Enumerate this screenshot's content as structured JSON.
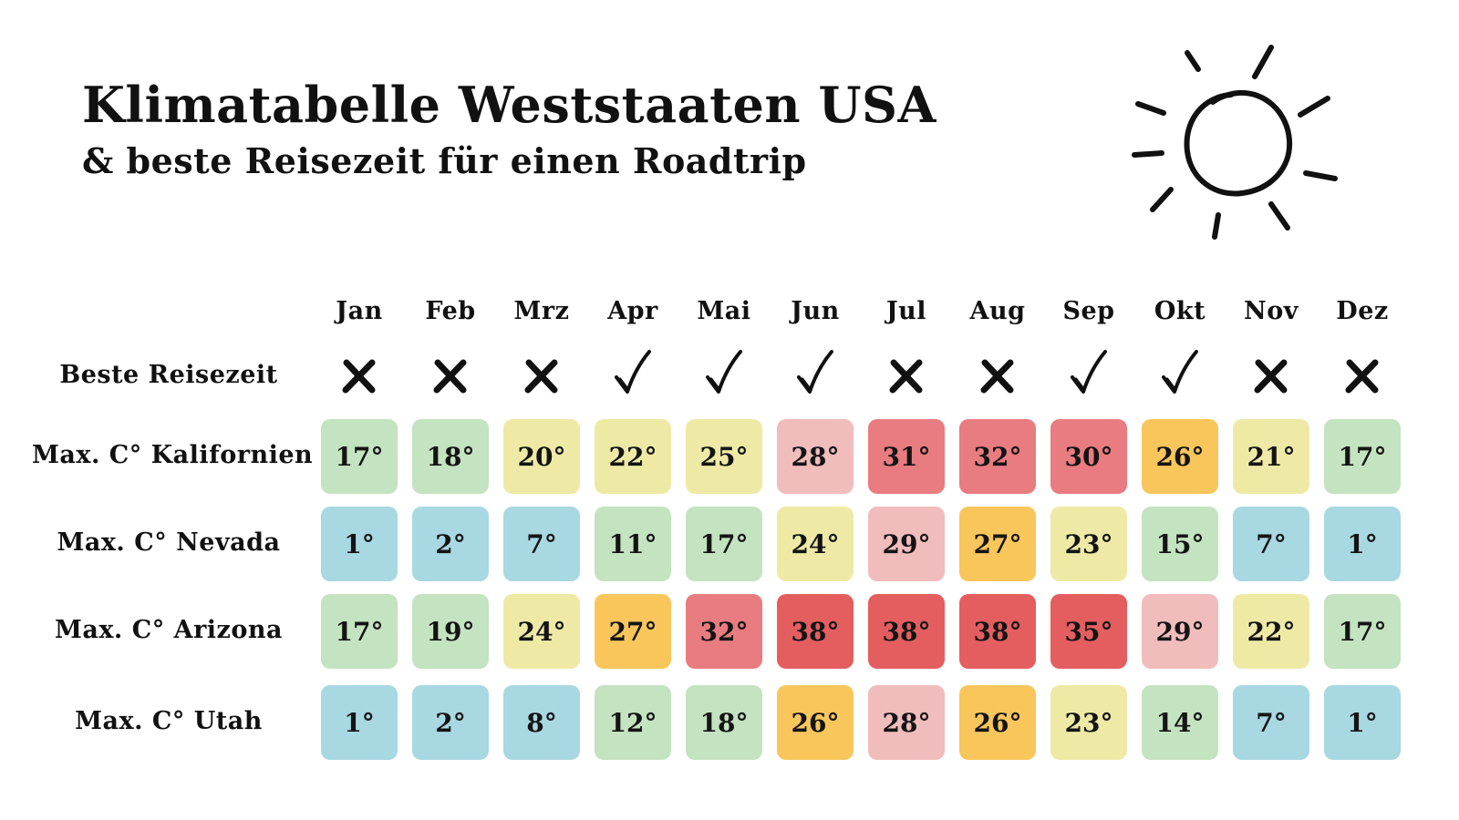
{
  "header": {
    "title": "Klimatabelle Weststaaten USA",
    "subtitle": "& beste Reisezeit für einen Roadtrip"
  },
  "chart_data": {
    "type": "table",
    "columns": [
      "Jan",
      "Feb",
      "Mrz",
      "Apr",
      "Mai",
      "Jun",
      "Jul",
      "Aug",
      "Sep",
      "Okt",
      "Nov",
      "Dez"
    ],
    "best_time": {
      "label": "Beste Reisezeit",
      "values": [
        "x",
        "x",
        "x",
        "check",
        "check",
        "check",
        "x",
        "x",
        "check",
        "check",
        "x",
        "x"
      ]
    },
    "rows": [
      {
        "label": "Max. C° Kalifornien",
        "values": [
          "17°",
          "18°",
          "20°",
          "22°",
          "25°",
          "28°",
          "31°",
          "32°",
          "30°",
          "26°",
          "21°",
          "17°"
        ]
      },
      {
        "label": "Max. C° Nevada",
        "values": [
          "1°",
          "2°",
          "7°",
          "11°",
          "17°",
          "24°",
          "29°",
          "27°",
          "23°",
          "15°",
          "7°",
          "1°"
        ]
      },
      {
        "label": "Max. C° Arizona",
        "values": [
          "17°",
          "19°",
          "24°",
          "27°",
          "32°",
          "38°",
          "38°",
          "38°",
          "35°",
          "29°",
          "22°",
          "17°"
        ]
      },
      {
        "label": "Max. C° Utah",
        "values": [
          "1°",
          "2°",
          "8°",
          "12°",
          "18°",
          "26°",
          "28°",
          "26°",
          "23°",
          "14°",
          "7°",
          "1°"
        ]
      }
    ],
    "colors": {
      "blue": "#a8d8e2",
      "green": "#c4e3c0",
      "yellow": "#eeeaa6",
      "pink": "#f1bcbc",
      "orange": "#f9c65c",
      "red": "#e87c80",
      "deep_red": "#e45e60"
    },
    "cell_colors": [
      [
        "green",
        "green",
        "yellow",
        "yellow",
        "yellow",
        "pink",
        "red",
        "red",
        "red",
        "orange",
        "yellow",
        "green"
      ],
      [
        "blue",
        "blue",
        "blue",
        "green",
        "green",
        "yellow",
        "pink",
        "orange",
        "yellow",
        "green",
        "blue",
        "blue"
      ],
      [
        "green",
        "green",
        "yellow",
        "orange",
        "red",
        "deep_red",
        "deep_red",
        "deep_red",
        "deep_red",
        "pink",
        "yellow",
        "green"
      ],
      [
        "blue",
        "blue",
        "blue",
        "green",
        "green",
        "orange",
        "pink",
        "orange",
        "yellow",
        "green",
        "blue",
        "blue"
      ]
    ],
    "icons": {
      "header_decoration": "sun-icon",
      "yes": "check-icon",
      "no": "cross-icon"
    }
  }
}
